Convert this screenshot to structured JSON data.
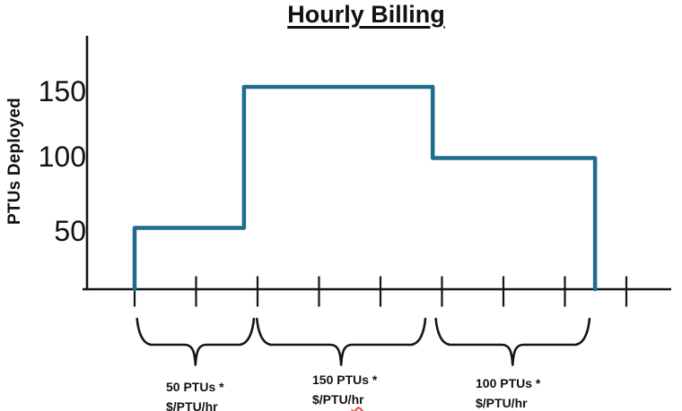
{
  "chart_data": {
    "type": "line",
    "subtype": "step",
    "title": "Hourly Billing",
    "xlabel": "",
    "ylabel": "PTUs Deployed",
    "yticks": [
      50,
      100,
      150
    ],
    "ylim": [
      0,
      170
    ],
    "x_axis": {
      "tick_count": 9,
      "tick_labels": []
    },
    "grid": false,
    "legend": false,
    "line_color": "#1f6c8e",
    "axis_color": "#151515",
    "spellcheck_color": "#e14b32",
    "series": [
      {
        "name": "PTUs Deployed",
        "color": "#1f6c8e",
        "x_ticks": [
          0,
          0,
          1.78,
          1.78,
          4.85,
          4.85,
          7.49,
          7.49
        ],
        "ptus": [
          0,
          50,
          50,
          150,
          150,
          100,
          100,
          0
        ]
      }
    ],
    "segments": [
      {
        "ptus": 50,
        "billing_label": "50 PTUs * $/PTU/hr"
      },
      {
        "ptus": 150,
        "billing_label": "150 PTUs * $/PTU/hr"
      },
      {
        "ptus": 100,
        "billing_label": "100 PTUs * $/PTU/hr"
      }
    ],
    "annotations": [
      {
        "label_line1": "50 PTUs *",
        "label_line2": "$/PTU/hr",
        "brace_from": 0.04,
        "brace_to": 1.94
      },
      {
        "label_line1": "150 PTUs *",
        "label_line2_head": "$/PTU/",
        "label_line2_misspelled": "hr",
        "brace_from": 1.99,
        "brace_to": 4.73
      },
      {
        "label_line1": "100 PTUs *",
        "label_line2": "$/PTU/hr",
        "brace_from": 4.9,
        "brace_to": 7.4
      }
    ]
  }
}
